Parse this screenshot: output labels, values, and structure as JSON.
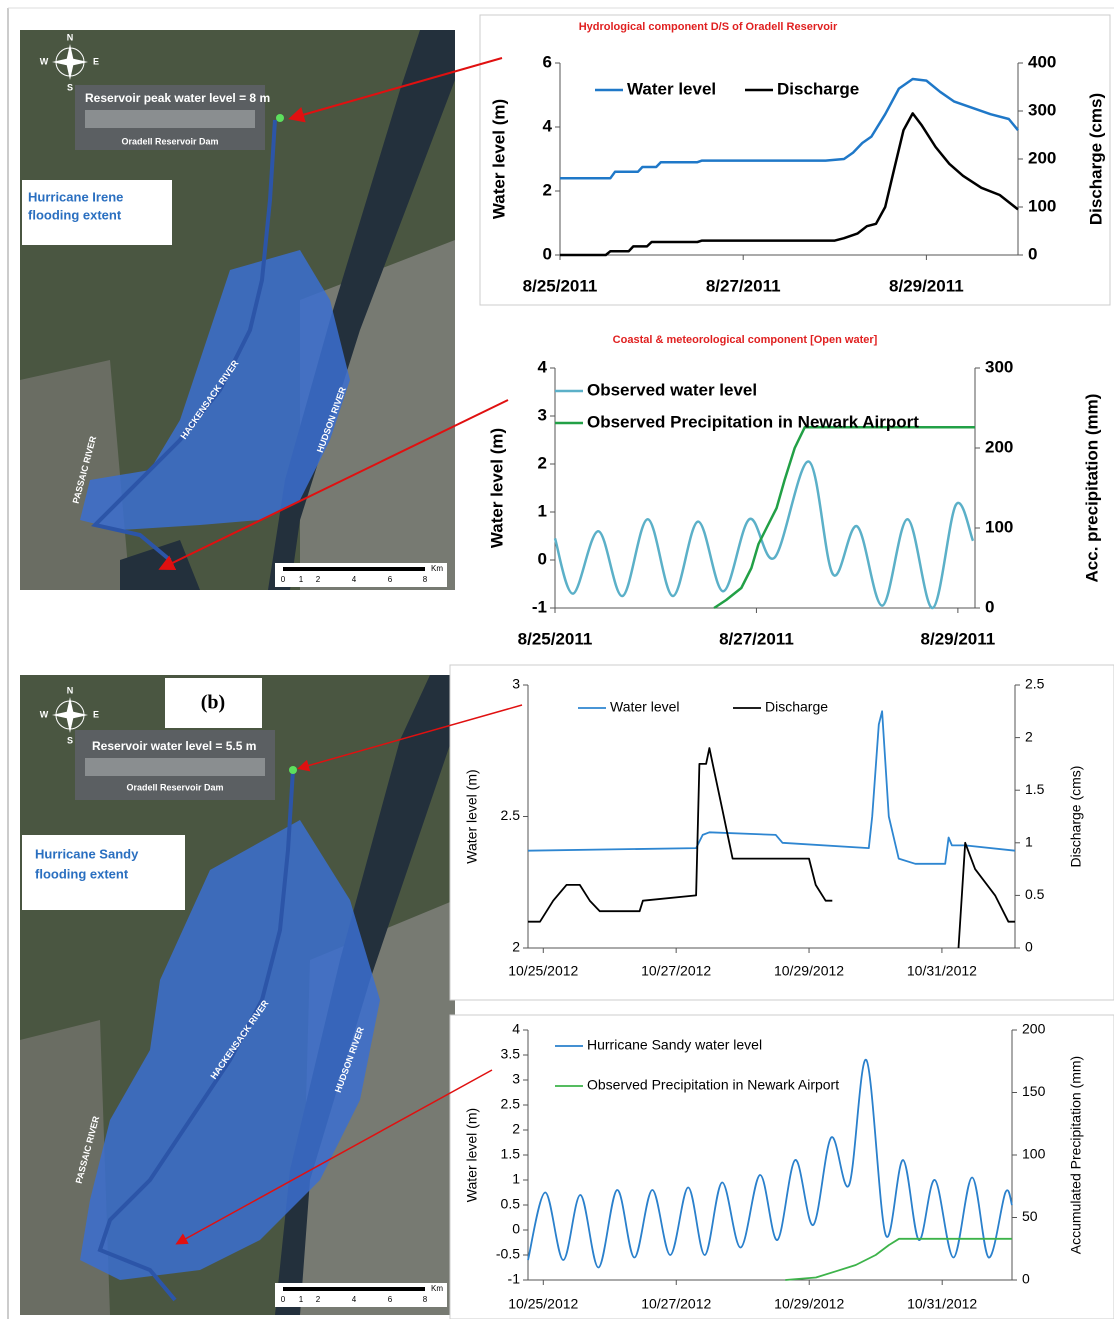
{
  "chart_data": [
    {
      "type": "line",
      "title": "Hydrological component D/S of Oradell Reservoir",
      "y_label": "Water level (m)",
      "y2_label": "Discharge (cms)",
      "xlim": [
        0,
        5
      ],
      "xticks": [
        {
          "value": 0,
          "label": "8/25/2011"
        },
        {
          "value": 2,
          "label": "8/27/2011"
        },
        {
          "value": 4,
          "label": "8/29/2011"
        }
      ],
      "ylim": [
        0,
        6
      ],
      "yticks": [
        0,
        2,
        4,
        6
      ],
      "y2lim": [
        0,
        400
      ],
      "y2ticks": [
        0,
        100,
        200,
        300,
        400
      ],
      "legend": "upper left",
      "series": [
        {
          "name": "Water level",
          "color": "#1f78c8",
          "x": [
            0,
            0.55,
            0.6,
            0.85,
            0.9,
            1.05,
            1.1,
            1.5,
            1.55,
            2.9,
            3.1,
            3.2,
            3.3,
            3.4,
            3.55,
            3.7,
            3.85,
            4.0,
            4.15,
            4.3,
            4.5,
            4.7,
            4.9,
            5.0
          ],
          "values": [
            2.4,
            2.4,
            2.6,
            2.6,
            2.75,
            2.75,
            2.9,
            2.9,
            2.95,
            2.95,
            3.0,
            3.2,
            3.5,
            3.7,
            4.4,
            5.2,
            5.5,
            5.45,
            5.1,
            4.8,
            4.6,
            4.4,
            4.25,
            3.9
          ]
        },
        {
          "name": "Discharge",
          "color": "#000000",
          "axis": "y2",
          "x": [
            0,
            0.5,
            0.55,
            0.75,
            0.8,
            0.95,
            1.0,
            1.5,
            1.55,
            3.0,
            3.1,
            3.25,
            3.35,
            3.45,
            3.55,
            3.65,
            3.75,
            3.85,
            3.95,
            4.1,
            4.25,
            4.4,
            4.6,
            4.8,
            5.0
          ],
          "values": [
            0,
            0,
            8,
            8,
            18,
            18,
            27,
            27,
            30,
            30,
            35,
            45,
            60,
            65,
            100,
            180,
            260,
            295,
            270,
            225,
            190,
            165,
            140,
            125,
            95
          ]
        }
      ]
    },
    {
      "type": "line",
      "title": "Coastal & meteorological component [Open water]",
      "y_label": "Water level (m)",
      "y2_label": "Acc. precipitation (mm)",
      "xlim": [
        0,
        4.17
      ],
      "xticks": [
        {
          "value": 0,
          "label": "8/25/2011"
        },
        {
          "value": 2,
          "label": "8/27/2011"
        },
        {
          "value": 4,
          "label": "8/29/2011"
        }
      ],
      "ylim": [
        -1,
        4
      ],
      "yticks": [
        -1,
        0,
        1,
        2,
        3,
        4
      ],
      "y2lim": [
        0,
        300
      ],
      "y2ticks": [
        0,
        100,
        200,
        300
      ],
      "legend": "upper left",
      "series": [
        {
          "name": "Observed water level",
          "color": "#5bb0c8",
          "smooth": true,
          "x": [
            0,
            0.18,
            0.43,
            0.67,
            0.92,
            1.17,
            1.42,
            1.67,
            1.93,
            2.18,
            2.52,
            2.76,
            3.0,
            3.25,
            3.5,
            3.75,
            3.98,
            4.15
          ],
          "values": [
            0.45,
            -0.7,
            0.6,
            -0.75,
            0.85,
            -0.75,
            0.8,
            -0.65,
            0.85,
            0.05,
            2.05,
            -0.3,
            0.7,
            -0.95,
            0.85,
            -1.0,
            1.15,
            0.4
          ]
        },
        {
          "name": "Observed Precipitation in Newark Airport",
          "color": "#22a046",
          "axis": "y2",
          "x": [
            1.58,
            1.7,
            1.85,
            1.95,
            2.02,
            2.1,
            2.2,
            2.28,
            2.38,
            2.48,
            4.17
          ],
          "values": [
            0,
            10,
            25,
            50,
            80,
            100,
            125,
            160,
            200,
            226,
            226
          ]
        }
      ]
    },
    {
      "type": "line",
      "y_label": "Water level (m)",
      "y2_label": "Discharge (cms)",
      "xlim": [
        -0.23,
        7.1
      ],
      "xticks": [
        {
          "value": 0,
          "label": "10/25/2012"
        },
        {
          "value": 2,
          "label": "10/27/2012"
        },
        {
          "value": 4,
          "label": "10/29/2012"
        },
        {
          "value": 6,
          "label": "10/31/2012"
        }
      ],
      "ylim": [
        2,
        3
      ],
      "yticks": [
        2,
        2.5,
        3
      ],
      "y2lim": [
        0,
        2.5
      ],
      "y2ticks": [
        0,
        0.5,
        1,
        1.5,
        2,
        2.5
      ],
      "legend": "upper left",
      "series": [
        {
          "name": "Water level",
          "color": "#2e86d1",
          "x": [
            -0.23,
            2.3,
            2.4,
            2.5,
            3.5,
            3.6,
            4.9,
            4.95,
            5.05,
            5.1,
            5.2,
            5.35,
            5.6,
            6.05,
            6.1,
            6.15,
            6.35,
            7.1
          ],
          "values": [
            2.37,
            2.38,
            2.43,
            2.44,
            2.43,
            2.4,
            2.38,
            2.5,
            2.85,
            2.9,
            2.5,
            2.34,
            2.32,
            2.32,
            2.42,
            2.39,
            2.39,
            2.37
          ]
        },
        {
          "name": "Discharge",
          "color": "#000000",
          "axis": "y2",
          "x": [
            -0.23,
            -0.05,
            0.15,
            0.35,
            0.55,
            0.7,
            0.85,
            1.0,
            1.45,
            1.5,
            2.3,
            2.35,
            2.45,
            2.5,
            2.55,
            2.7,
            2.8,
            2.85,
            4.0,
            4.1,
            4.25,
            4.35,
            4.4,
            6.25,
            6.35,
            6.5,
            6.8,
            7.0,
            7.1
          ],
          "values": [
            0.25,
            0.25,
            0.45,
            0.6,
            0.6,
            0.45,
            0.35,
            0.35,
            0.35,
            0.45,
            0.5,
            1.75,
            1.75,
            1.9,
            1.75,
            1.3,
            1.0,
            0.85,
            0.85,
            0.6,
            0.45,
            0.45,
            null,
            0,
            1.0,
            0.75,
            0.5,
            0.25,
            0.25
          ]
        }
      ]
    },
    {
      "type": "line",
      "y_label": "Water level (m)",
      "y2_label": "Accumulated Precipitation (mm)",
      "xlim": [
        -0.23,
        7.05
      ],
      "xticks": [
        {
          "value": 0,
          "label": "10/25/2012"
        },
        {
          "value": 2,
          "label": "10/27/2012"
        },
        {
          "value": 4,
          "label": "10/29/2012"
        },
        {
          "value": 6,
          "label": "10/31/2012"
        }
      ],
      "ylim": [
        -1,
        4
      ],
      "yticks": [
        -1,
        -0.5,
        0,
        0.5,
        1,
        1.5,
        2,
        2.5,
        3,
        3.5,
        4
      ],
      "y2lim": [
        0,
        200
      ],
      "y2ticks": [
        0,
        50,
        100,
        150,
        200
      ],
      "legend": "upper left",
      "series": [
        {
          "name": "Hurricane Sandy water level",
          "color": "#2a80cc",
          "smooth": true,
          "x": [
            -0.23,
            0.03,
            0.3,
            0.56,
            0.83,
            1.11,
            1.37,
            1.64,
            1.91,
            2.18,
            2.43,
            2.69,
            2.97,
            3.26,
            3.52,
            3.79,
            4.06,
            4.33,
            4.6,
            4.86,
            5.15,
            5.41,
            5.65,
            5.89,
            6.17,
            6.45,
            6.7,
            6.95,
            7.05
          ],
          "values": [
            -0.6,
            0.75,
            -0.6,
            0.7,
            -0.75,
            0.8,
            -0.55,
            0.8,
            -0.5,
            0.85,
            -0.5,
            0.95,
            -0.35,
            1.1,
            -0.2,
            1.4,
            0.1,
            1.85,
            0.9,
            3.4,
            -0.1,
            1.4,
            -0.2,
            1.0,
            -0.55,
            1.05,
            -0.55,
            0.75,
            0.5
          ]
        },
        {
          "name": "Observed Precipitation in Newark Airport",
          "color": "#3db34a",
          "axis": "y2",
          "x": [
            3.64,
            4.1,
            4.4,
            4.7,
            5.0,
            5.2,
            5.35,
            7.05
          ],
          "values": [
            0,
            2,
            7,
            12,
            20,
            28,
            33,
            33
          ]
        }
      ]
    }
  ],
  "maps": [
    {
      "inset_label": "Reservoir peak water level = 8 m",
      "dam_label": "Oradell Reservoir Dam",
      "extent_label": [
        "Hurricane Irene",
        "flooding extent"
      ],
      "rivers": [
        "HACKENSACK RIVER",
        "PASSAIC RIVER",
        "HUDSON RIVER"
      ],
      "compass": [
        "N",
        "S",
        "W",
        "E"
      ],
      "scale": [
        0,
        1,
        2,
        4,
        6,
        8
      ],
      "scale_unit": "Km"
    },
    {
      "panel_label": "(b)",
      "inset_label": "Reservoir water level = 5.5 m",
      "dam_label": "Oradell Reservoir Dam",
      "extent_label": [
        "Hurricane Sandy",
        "flooding extent"
      ],
      "rivers": [
        "HACKENSACK RIVER",
        "PASSAIC RIVER",
        "HUDSON RIVER"
      ],
      "compass": [
        "N",
        "S",
        "W",
        "E"
      ],
      "scale": [
        0,
        1,
        2,
        4,
        6,
        8
      ],
      "scale_unit": "Km"
    }
  ]
}
